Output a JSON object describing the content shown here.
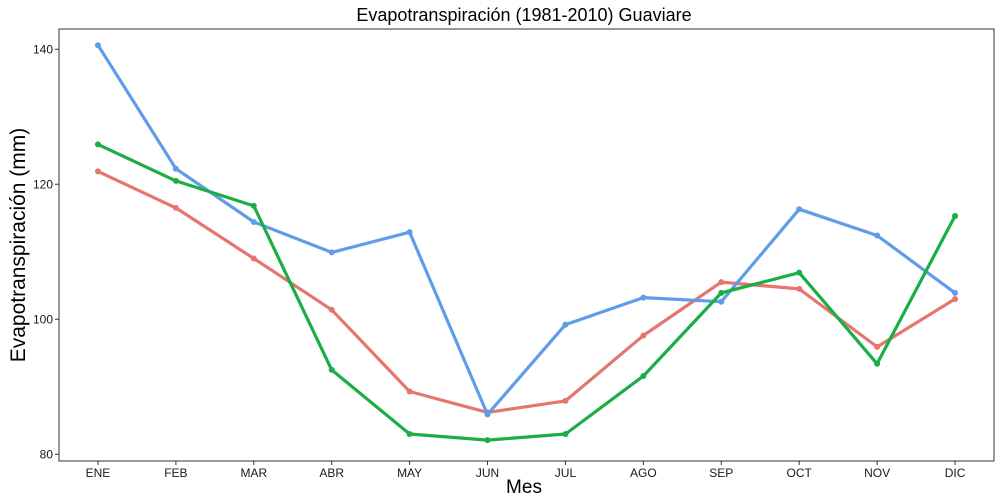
{
  "chart_data": {
    "type": "line",
    "title": "Evapotranspiración (1981-2010)  Guaviare",
    "xlabel": "Mes",
    "ylabel": "Evapotranspiración (mm)",
    "categories": [
      "ENE",
      "FEB",
      "MAR",
      "ABR",
      "MAY",
      "JUN",
      "JUL",
      "AGO",
      "SEP",
      "OCT",
      "NOV",
      "DIC"
    ],
    "ylim": [
      79,
      143
    ],
    "yticks": [
      80,
      100,
      120,
      140
    ],
    "grid": false,
    "legend": "none",
    "series": [
      {
        "color": "#E5766F",
        "values": [
          121.9,
          116.5,
          109.0,
          101.4,
          89.3,
          86.2,
          87.9,
          97.6,
          105.5,
          104.5,
          95.9,
          103.0
        ]
      },
      {
        "color": "#619CE8",
        "values": [
          140.6,
          122.3,
          114.4,
          109.9,
          112.9,
          85.9,
          99.2,
          103.2,
          102.6,
          116.3,
          112.4,
          103.9
        ]
      },
      {
        "color": "#1AAE45",
        "values": [
          125.9,
          120.5,
          116.8,
          92.5,
          83.0,
          82.1,
          83.0,
          91.6,
          103.9,
          106.9,
          93.4,
          115.3
        ]
      }
    ]
  }
}
